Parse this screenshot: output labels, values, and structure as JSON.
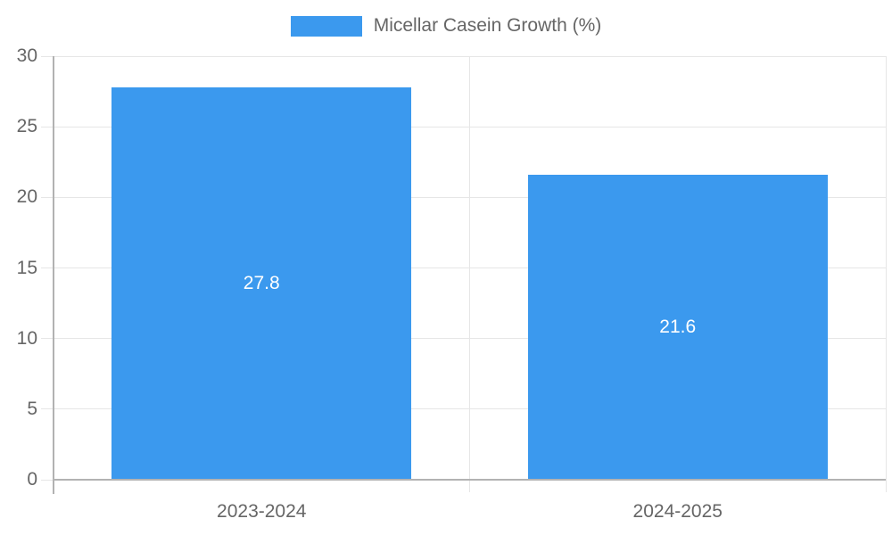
{
  "chart_data": {
    "type": "bar",
    "title": "",
    "legend_label": "Micellar Casein Growth (%)",
    "legend_position": "top",
    "categories": [
      "2023-2024",
      "2024-2025"
    ],
    "values": [
      27.8,
      21.6
    ],
    "value_labels": [
      "27.8",
      "21.6"
    ],
    "xlabel": "",
    "ylabel": "",
    "ylim": [
      0,
      30
    ],
    "yticks": [
      0,
      5,
      10,
      15,
      20,
      25,
      30
    ],
    "grid": true,
    "bar_color": "#3b99ee",
    "value_label_color": "#ffffff",
    "grid_color": "#e6e6e6",
    "axis_color": "#b2b2b2",
    "text_color": "#666666"
  }
}
